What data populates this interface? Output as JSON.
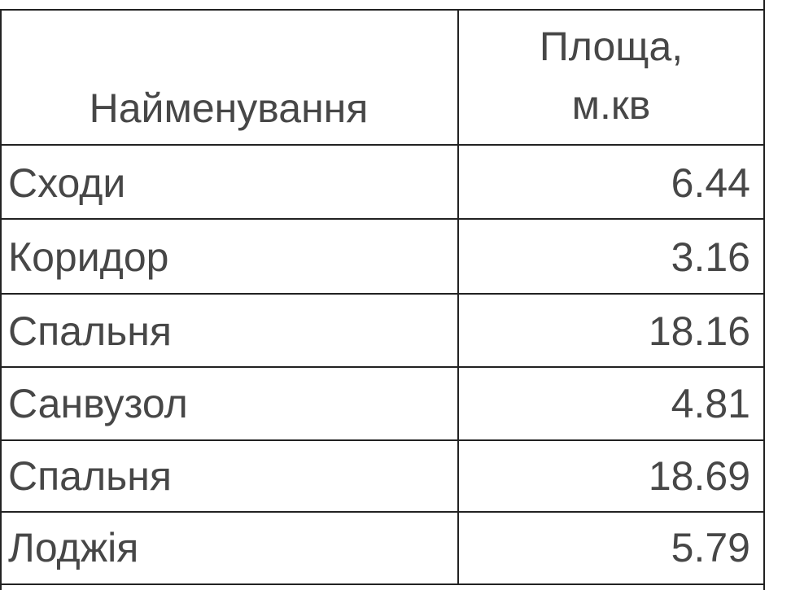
{
  "table": {
    "headers": {
      "name": "Найменування",
      "area_line1": "Площа,",
      "area_line2": "м.кв"
    },
    "rows": [
      {
        "name": "Сходи",
        "area": "6.44"
      },
      {
        "name": "Коридор",
        "area": "3.16"
      },
      {
        "name": "Спальня",
        "area": "18.16"
      },
      {
        "name": "Санвузол",
        "area": "4.81"
      },
      {
        "name": "Спальня",
        "area": "18.69"
      },
      {
        "name": "Лоджія",
        "area": "5.79"
      }
    ]
  }
}
